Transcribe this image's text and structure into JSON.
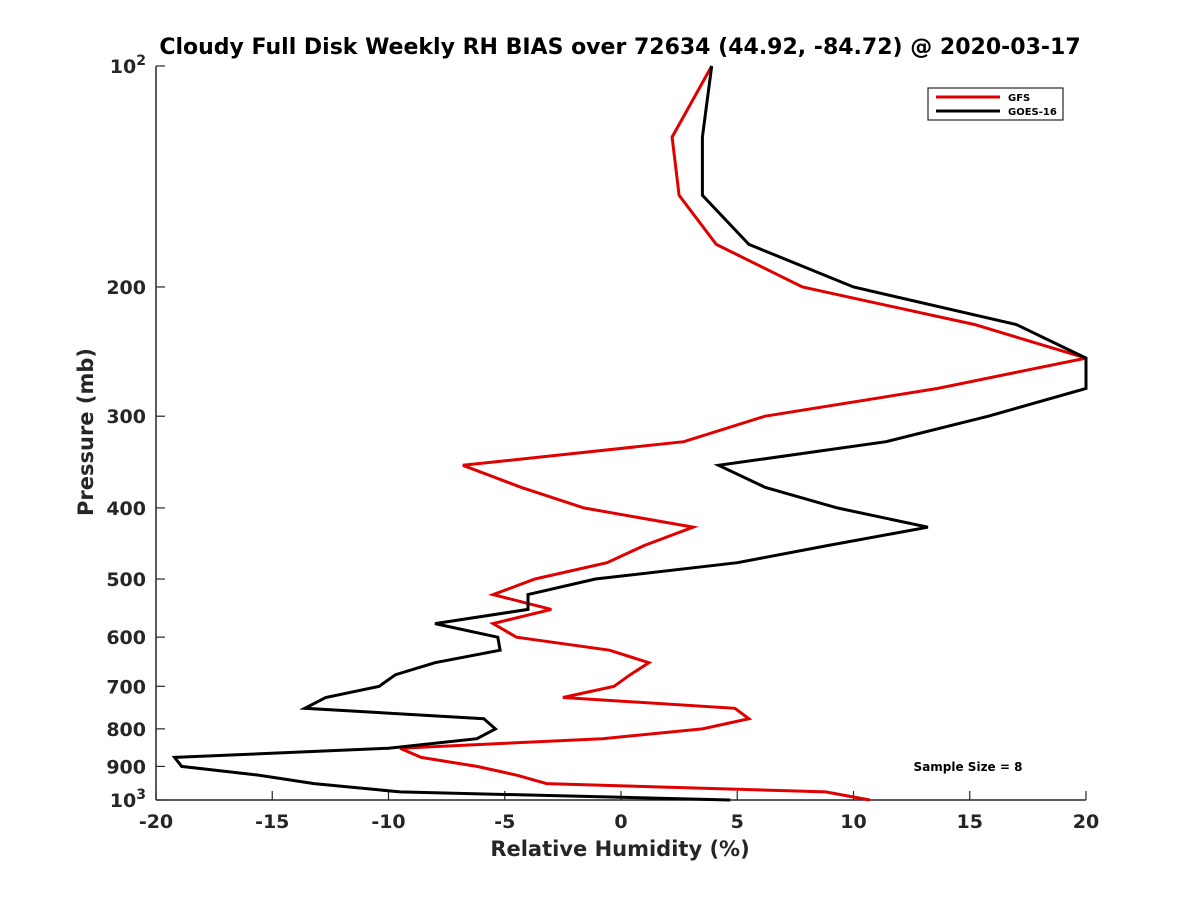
{
  "chart_data": {
    "type": "line",
    "title": "Cloudy Full Disk Weekly RH BIAS over 72634 (44.92, -84.72) @ 2020-03-17",
    "xlabel": "Relative Humidity (%)",
    "ylabel": "Pressure (mb)",
    "xlim": [
      -20,
      20
    ],
    "ylim": [
      100,
      1000
    ],
    "y_scale": "log",
    "y_reversed": true,
    "grid": false,
    "legend_position": "top-right",
    "x_ticks": [
      -20,
      -15,
      -10,
      -5,
      0,
      5,
      10,
      15,
      20
    ],
    "x_tick_labels": [
      "-20",
      "-15",
      "-10",
      "-5",
      "0",
      "5",
      "10",
      "15",
      "20"
    ],
    "y_ticks": [
      100,
      200,
      300,
      400,
      500,
      600,
      700,
      800,
      900,
      1000
    ],
    "y_tick_labels": [
      {
        "base": "10",
        "exp": "2"
      },
      {
        "base": "200",
        "exp": ""
      },
      {
        "base": "300",
        "exp": ""
      },
      {
        "base": "400",
        "exp": ""
      },
      {
        "base": "500",
        "exp": ""
      },
      {
        "base": "600",
        "exp": ""
      },
      {
        "base": "700",
        "exp": ""
      },
      {
        "base": "800",
        "exp": ""
      },
      {
        "base": "900",
        "exp": ""
      },
      {
        "base": "10",
        "exp": "3"
      }
    ],
    "annotation": "Sample Size = 8",
    "series": [
      {
        "name": "GFS",
        "color": "#e00000",
        "points": [
          [
            3.9,
            100
          ],
          [
            2.2,
            125
          ],
          [
            2.5,
            150
          ],
          [
            4.1,
            175
          ],
          [
            7.8,
            200
          ],
          [
            15.2,
            225
          ],
          [
            20,
            250
          ],
          [
            13.6,
            275
          ],
          [
            6.2,
            300
          ],
          [
            2.7,
            325
          ],
          [
            -6.8,
            350
          ],
          [
            -4.3,
            375
          ],
          [
            -1.6,
            400
          ],
          [
            3.1,
            425
          ],
          [
            1.0,
            450
          ],
          [
            -0.6,
            475
          ],
          [
            -3.7,
            500
          ],
          [
            -5.5,
            525
          ],
          [
            -3.0,
            550
          ],
          [
            -5.5,
            575
          ],
          [
            -4.5,
            600
          ],
          [
            -0.5,
            625
          ],
          [
            1.2,
            650
          ],
          [
            0.4,
            675
          ],
          [
            -0.3,
            700
          ],
          [
            -2.5,
            725
          ],
          [
            4.9,
            750
          ],
          [
            5.5,
            775
          ],
          [
            3.5,
            800
          ],
          [
            -0.8,
            825
          ],
          [
            -9.5,
            850
          ],
          [
            -8.6,
            875
          ],
          [
            -6.2,
            900
          ],
          [
            -4.5,
            925
          ],
          [
            -3.2,
            950
          ],
          [
            8.8,
            975
          ],
          [
            10.7,
            1000
          ]
        ]
      },
      {
        "name": "GOES-16",
        "color": "#000000",
        "points": [
          [
            3.9,
            100
          ],
          [
            3.5,
            125
          ],
          [
            3.5,
            150
          ],
          [
            5.5,
            175
          ],
          [
            10.0,
            200
          ],
          [
            17.0,
            225
          ],
          [
            20,
            250
          ],
          [
            20,
            275
          ],
          [
            15.8,
            300
          ],
          [
            11.4,
            325
          ],
          [
            4.2,
            350
          ],
          [
            6.2,
            375
          ],
          [
            9.3,
            400
          ],
          [
            13.2,
            425
          ],
          [
            8.9,
            450
          ],
          [
            5.0,
            475
          ],
          [
            -1.1,
            500
          ],
          [
            -4.0,
            525
          ],
          [
            -4.0,
            550
          ],
          [
            -8.0,
            575
          ],
          [
            -5.3,
            600
          ],
          [
            -5.2,
            625
          ],
          [
            -8.0,
            650
          ],
          [
            -9.7,
            675
          ],
          [
            -10.4,
            700
          ],
          [
            -12.7,
            725
          ],
          [
            -13.6,
            750
          ],
          [
            -5.9,
            775
          ],
          [
            -5.4,
            800
          ],
          [
            -6.2,
            825
          ],
          [
            -10.0,
            850
          ],
          [
            -19.2,
            875
          ],
          [
            -18.9,
            900
          ],
          [
            -15.6,
            925
          ],
          [
            -13.2,
            950
          ],
          [
            -9.5,
            975
          ],
          [
            4.7,
            1000
          ]
        ]
      }
    ]
  }
}
